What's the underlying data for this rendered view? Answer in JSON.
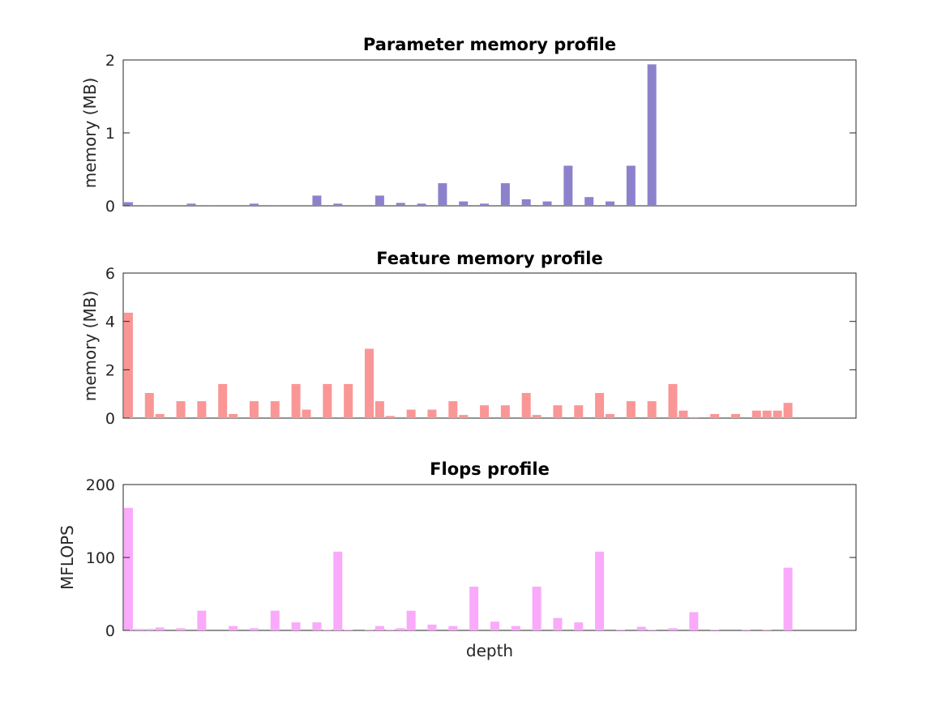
{
  "chart_data": [
    {
      "type": "bar",
      "title": "Parameter memory profile",
      "xlabel": "",
      "ylabel": "memory (MB)",
      "ylim": [
        0,
        2
      ],
      "yticks": [
        "0",
        "1",
        "2"
      ],
      "color": "#8c82cc",
      "x": [
        1,
        3,
        5,
        7,
        9,
        11,
        13,
        15,
        17,
        19,
        21,
        23,
        25,
        27,
        29,
        31,
        33,
        35,
        37,
        39,
        41,
        43,
        45,
        47,
        49,
        51,
        53,
        55,
        57,
        59,
        61
      ],
      "values": [
        0.05,
        0.01,
        0.0,
        0.03,
        0.01,
        0.0,
        0.03,
        0.01,
        0.01,
        0.14,
        0.03,
        0.01,
        0.14,
        0.04,
        0.03,
        0.31,
        0.06,
        0.03,
        0.31,
        0.09,
        0.06,
        0.55,
        0.12,
        0.06,
        0.55,
        1.94,
        0.0,
        0.0,
        0.0,
        0.0,
        0.0
      ]
    },
    {
      "type": "bar",
      "title": "Feature memory profile",
      "xlabel": "",
      "ylabel": "memory (MB)",
      "ylim": [
        0,
        6
      ],
      "yticks": [
        "0",
        "2",
        "4",
        "6"
      ],
      "color": "#fa9696",
      "x": [
        1,
        3,
        4,
        6,
        8,
        10,
        11,
        13,
        15,
        17,
        18,
        20,
        22,
        24,
        25,
        26,
        28,
        30,
        32,
        33,
        35,
        37,
        39,
        40,
        42,
        44,
        46,
        47,
        49,
        51,
        53,
        54,
        55,
        57,
        59,
        61,
        62,
        63,
        64
      ],
      "values": [
        4.36,
        1.04,
        0.17,
        0.7,
        0.7,
        1.41,
        0.17,
        0.7,
        0.7,
        1.41,
        0.35,
        1.41,
        1.41,
        2.87,
        0.7,
        0.09,
        0.35,
        0.35,
        0.7,
        0.13,
        0.53,
        0.53,
        1.04,
        0.13,
        0.53,
        0.53,
        1.04,
        0.17,
        0.7,
        0.7,
        1.41,
        0.31,
        0.04,
        0.17,
        0.17,
        0.31,
        0.31,
        0.31,
        0.63
      ]
    },
    {
      "type": "bar",
      "title": "Flops profile",
      "xlabel": "depth",
      "ylabel": "MFLOPS",
      "ylim": [
        0,
        200
      ],
      "yticks": [
        "0",
        "100",
        "200"
      ],
      "color": "#faaafa",
      "x": [
        1,
        2,
        3,
        4,
        6,
        8,
        11,
        13,
        15,
        17,
        19,
        20,
        21,
        22,
        24,
        25,
        26,
        27,
        28,
        30,
        32,
        34,
        36,
        38,
        40,
        42,
        44,
        46,
        48,
        50,
        51,
        53,
        55,
        57,
        60,
        62,
        64
      ],
      "values": [
        168,
        2,
        2,
        4,
        3,
        27,
        6,
        3,
        27,
        11,
        11,
        1,
        108,
        1,
        1,
        6,
        1,
        3,
        27,
        8,
        6,
        60,
        12,
        6,
        60,
        17,
        11,
        108,
        1,
        5,
        1,
        3,
        25,
        1,
        1,
        1,
        86
      ]
    }
  ]
}
